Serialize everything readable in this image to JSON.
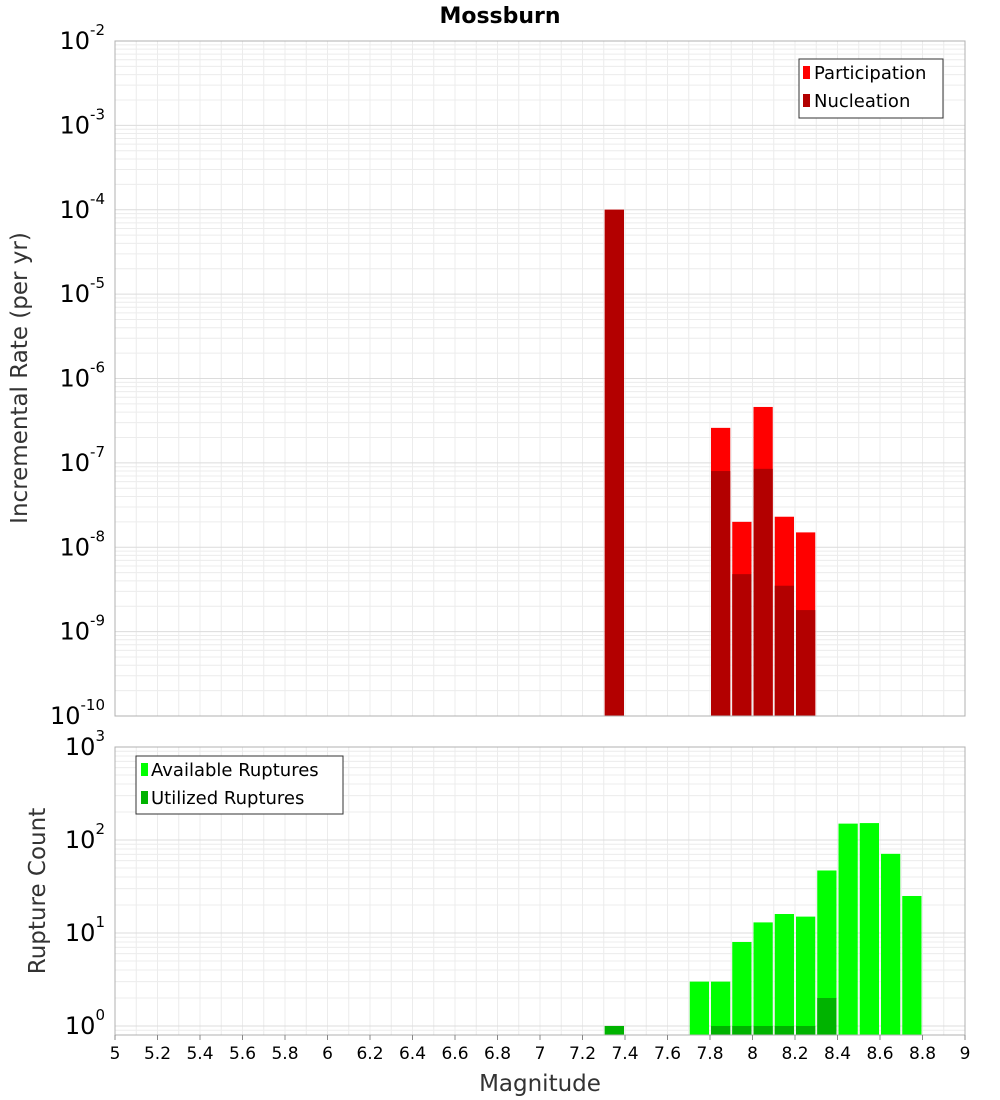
{
  "title": "Mossburn",
  "chart_data": [
    {
      "type": "bar",
      "title": "Mossburn",
      "xlabel": "Magnitude",
      "ylabel": "Incremental Rate (per yr)",
      "yscale": "log",
      "ylim": [
        1e-10,
        0.01
      ],
      "xlim": [
        5,
        9
      ],
      "grid": true,
      "legend_position": "top-right",
      "bin_width": 0.1,
      "series": [
        {
          "name": "Participation",
          "color": "#ff0000",
          "x": [
            7.35,
            7.85,
            7.95,
            8.05,
            8.15,
            8.25
          ],
          "values": [
            0.0001,
            2.6e-07,
            2e-08,
            4.6e-07,
            2.3e-08,
            1.5e-08
          ]
        },
        {
          "name": "Nucleation",
          "color": "#b30000",
          "x": [
            7.35,
            7.85,
            7.95,
            8.05,
            8.15,
            8.25
          ],
          "values": [
            0.0001,
            8e-08,
            4.8e-09,
            8.5e-08,
            3.5e-09,
            1.8e-09
          ]
        }
      ],
      "y_ticks": [
        {
          "base": "10",
          "exp": "-10",
          "value": 1e-10
        },
        {
          "base": "10",
          "exp": "-9",
          "value": 1e-09
        },
        {
          "base": "10",
          "exp": "-8",
          "value": 1e-08
        },
        {
          "base": "10",
          "exp": "-7",
          "value": 1e-07
        },
        {
          "base": "10",
          "exp": "-6",
          "value": 1e-06
        },
        {
          "base": "10",
          "exp": "-5",
          "value": 1e-05
        },
        {
          "base": "10",
          "exp": "-4",
          "value": 0.0001
        },
        {
          "base": "10",
          "exp": "-3",
          "value": 0.001
        },
        {
          "base": "10",
          "exp": "-2",
          "value": 0.01
        }
      ]
    },
    {
      "type": "bar",
      "xlabel": "Magnitude",
      "ylabel": "Rupture Count",
      "yscale": "log",
      "ylim": [
        0.8,
        1000
      ],
      "xlim": [
        5,
        9
      ],
      "grid": true,
      "legend_position": "top-left",
      "bin_width": 0.1,
      "series": [
        {
          "name": "Available Ruptures",
          "color": "#00ff00",
          "x": [
            7.35,
            7.75,
            7.85,
            7.95,
            8.05,
            8.15,
            8.25,
            8.35,
            8.45,
            8.55,
            8.65,
            8.75
          ],
          "values": [
            1,
            3,
            3,
            8,
            13,
            16,
            15,
            47,
            150,
            152,
            71,
            25
          ]
        },
        {
          "name": "Utilized Ruptures",
          "color": "#00b300",
          "x": [
            7.35,
            7.85,
            7.95,
            8.05,
            8.15,
            8.25,
            8.35
          ],
          "values": [
            1,
            1,
            1,
            1,
            1,
            1,
            2
          ]
        }
      ],
      "y_ticks": [
        {
          "base": "10",
          "exp": "0",
          "value": 1
        },
        {
          "base": "10",
          "exp": "1",
          "value": 10
        },
        {
          "base": "10",
          "exp": "2",
          "value": 100
        },
        {
          "base": "10",
          "exp": "3",
          "value": 1000
        }
      ]
    }
  ],
  "x_ticks": [
    "5",
    "5.2",
    "5.4",
    "5.6",
    "5.8",
    "6",
    "6.2",
    "6.4",
    "6.6",
    "6.8",
    "7",
    "7.2",
    "7.4",
    "7.6",
    "7.8",
    "8",
    "8.2",
    "8.4",
    "8.6",
    "8.8",
    "9"
  ]
}
